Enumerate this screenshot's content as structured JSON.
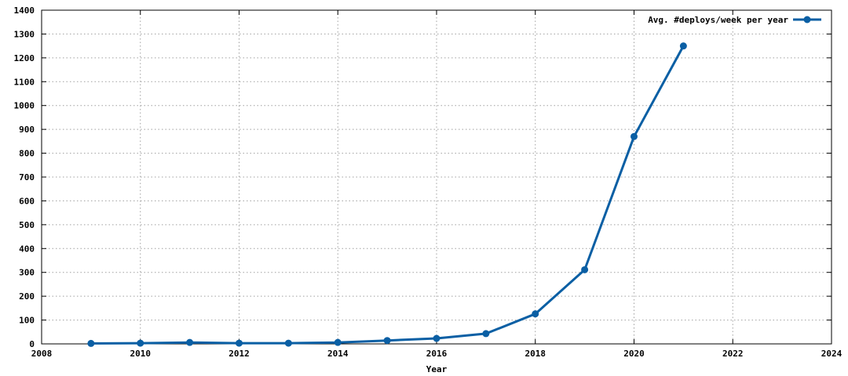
{
  "chart_data": {
    "type": "line",
    "title": "",
    "xlabel": "Year",
    "ylabel": "",
    "xlim": [
      2008,
      2024
    ],
    "ylim": [
      0,
      1400
    ],
    "xticks": [
      2008,
      2010,
      2012,
      2014,
      2016,
      2018,
      2020,
      2022,
      2024
    ],
    "yticks": [
      0,
      100,
      200,
      300,
      400,
      500,
      600,
      700,
      800,
      900,
      1000,
      1100,
      1200,
      1300,
      1400
    ],
    "grid": true,
    "legend_position": "top-right",
    "series": [
      {
        "name": "Avg. #deploys/week per year",
        "color": "#0a5fa4",
        "marker": "circle",
        "x": [
          2009,
          2010,
          2011,
          2012,
          2013,
          2014,
          2015,
          2016,
          2017,
          2018,
          2019,
          2020,
          2021
        ],
        "values": [
          2,
          3,
          6,
          3,
          3,
          6,
          14,
          23,
          43,
          126,
          311,
          870,
          1250
        ]
      }
    ]
  }
}
